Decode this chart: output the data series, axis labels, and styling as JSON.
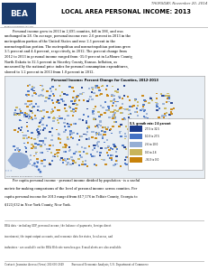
{
  "date_line": "THURSDAY, November 20, 2014",
  "title": "LOCAL AREA PERSONAL INCOME: 2013",
  "body_text1": "        Personal income grew in 2013 in 2,695 counties, fell in 386, and was unchanged in 28. On average, personal income rose 2.6 percent in 2013 in the metropolitan portion of the United States and rose 2.1 percent in the nonmetropolitan portion. The metropolitan and nonmetropolitan portions grew 3.5 percent and 4.4 percent, respectively, in 2012. The percent change from 2012 to 2013 in personal income ranged from -35.0 percent in LaMoure County, North Dakota to 32.5 percent in Stearley County, Kansas. Inflation, as measured by the national price index for personal consumption expenditures, slowed to 1.2 percent in 2013 from 1.8 percent in 2012.",
  "map_title": "Personal Income: Percent Change for Counties, 2012-2013",
  "footer_text1": "        Per capita personal income - personal income divided by population - is a useful metric for making comparisons of the level of personal income across counties. Per capita personal income for 2013 ranged from $17,576 in Telfair County, Georgia to $123,632 in New York County, New York.",
  "footer_small": "BEA data - including GDP, personal income, the balance of payments, foreign direct investment, the input-output accounts, and economic data for states, local areas, and industries - are available on the BEA Web site www.bea.gov. E-mail alerts are also available.",
  "footer_contact": "Contact: Jeannine Aversa (News) 202-606-2649          Bureau of Economic Analysis, U.S. Department of Commerce",
  "bg_color": "#ffffff",
  "map_legend_title": "U.S. growth rate: 2.6 percent",
  "legend_categories": [
    "27.5 to 32.5",
    "10.0 to 27.5",
    "2.6 to 10.0",
    "0.0 to 2.6",
    "-35.0 to 0.0"
  ],
  "legend_colors": [
    "#1a3a8c",
    "#4472c4",
    "#95aed4",
    "#c8b45a",
    "#c8820a"
  ],
  "map_colors": [
    "#1a3a8c",
    "#4472c4",
    "#95aed4",
    "#c8b45a",
    "#c8820a"
  ],
  "map_weights": [
    0.08,
    0.25,
    0.3,
    0.15,
    0.22
  ]
}
